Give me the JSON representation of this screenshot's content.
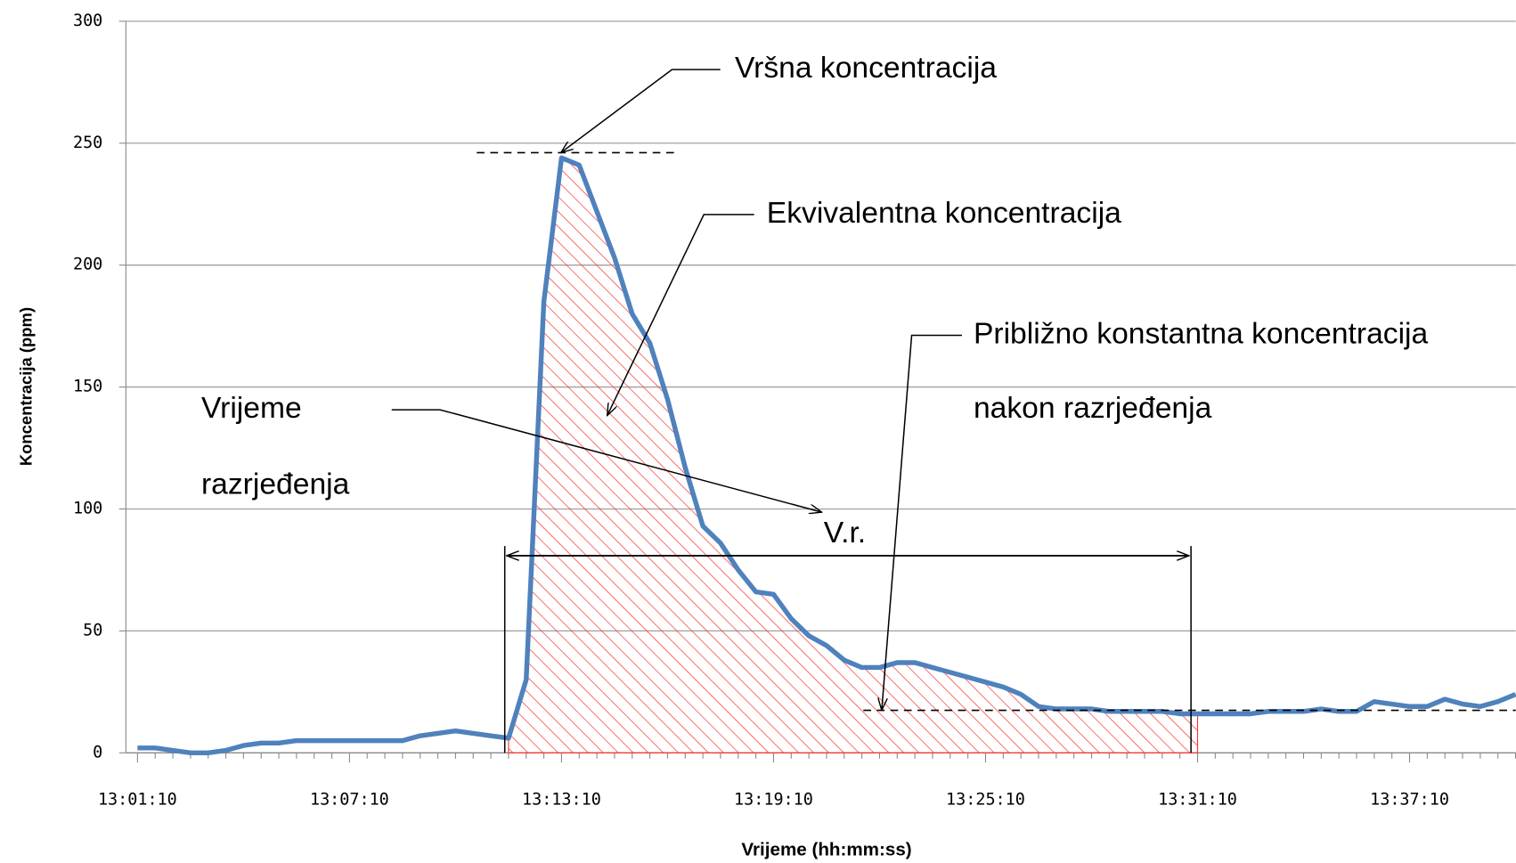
{
  "chart_data": {
    "type": "line",
    "x_label": "Vrijeme (hh:mm:ss)",
    "y_label": "Koncentracija  (ppm)",
    "categories": [
      "13:01:10",
      null,
      null,
      null,
      null,
      null,
      null,
      null,
      null,
      null,
      null,
      null,
      "13:07:10",
      null,
      null,
      null,
      null,
      null,
      null,
      null,
      null,
      null,
      null,
      null,
      "13:13:10",
      null,
      null,
      null,
      null,
      null,
      null,
      null,
      null,
      null,
      null,
      null,
      "13:19:10",
      null,
      null,
      null,
      null,
      null,
      null,
      null,
      null,
      null,
      null,
      null,
      "13:25:10",
      null,
      null,
      null,
      null,
      null,
      null,
      null,
      null,
      null,
      null,
      null,
      "13:31:10",
      null,
      null,
      null,
      null,
      null,
      null,
      null,
      null,
      null,
      null,
      null,
      "13:37:10",
      null,
      null,
      null,
      null,
      null,
      null
    ],
    "series": [
      {
        "name": "Koncentracija",
        "color": "#4f81bd",
        "values": [
          2,
          2,
          1,
          0,
          0,
          1,
          3,
          4,
          4,
          5,
          5,
          5,
          5,
          5,
          5,
          5,
          7,
          8,
          9,
          8,
          7,
          6,
          30,
          185,
          244,
          241,
          222,
          203,
          180,
          168,
          145,
          117,
          93,
          86,
          75,
          66,
          65,
          55,
          48,
          44,
          38,
          35,
          35,
          37,
          37,
          35,
          33,
          31,
          29,
          27,
          24,
          19,
          18,
          18,
          18,
          17,
          17,
          17,
          17,
          16,
          16,
          16,
          16,
          16,
          17,
          17,
          17,
          18,
          17,
          17,
          21,
          20,
          19,
          19,
          22,
          20,
          19,
          21,
          24
        ]
      }
    ],
    "ylim": [
      0,
      300
    ],
    "yticks": [
      0,
      50,
      100,
      150,
      200,
      250,
      300
    ],
    "grid": true,
    "annotations": {
      "peak": "Vršna koncentracija",
      "equivalent": "Ekvivalentna koncentracija",
      "constant_1": "Približno konstantna koncentracija",
      "constant_2": "nakon razrjeđenja",
      "time_1": "Vrijeme",
      "time_2": "razrjeđenja",
      "vr": "V.r."
    }
  }
}
